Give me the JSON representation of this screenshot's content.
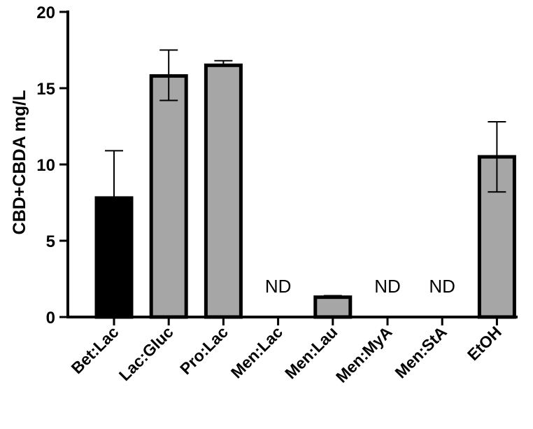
{
  "chart_data": {
    "type": "bar",
    "title": "",
    "xlabel": "",
    "ylabel": "CBD+CBDA mg/L",
    "ylim": [
      0,
      20
    ],
    "yticks": [
      0,
      5,
      10,
      15,
      20
    ],
    "grid": false,
    "categories": [
      "Bet:Lac",
      "Lac:Gluc",
      "Pro:Lac",
      "Men:Lac",
      "Men:Lau",
      "Men:MyA",
      "Men:StA",
      "EtOH"
    ],
    "values": [
      7.8,
      15.8,
      16.5,
      null,
      1.3,
      null,
      null,
      10.5
    ],
    "error_low": [
      7.8,
      14.2,
      16.5,
      null,
      1.3,
      null,
      null,
      8.2
    ],
    "error_high": [
      10.9,
      17.5,
      16.8,
      null,
      1.4,
      null,
      null,
      12.8
    ],
    "annotations": [
      "",
      "",
      "",
      "ND",
      "",
      "ND",
      "ND",
      ""
    ],
    "colors": [
      "#000000",
      "#a6a6a6",
      "#a6a6a6",
      "#a6a6a6",
      "#a6a6a6",
      "#a6a6a6",
      "#a6a6a6",
      "#a6a6a6"
    ]
  }
}
